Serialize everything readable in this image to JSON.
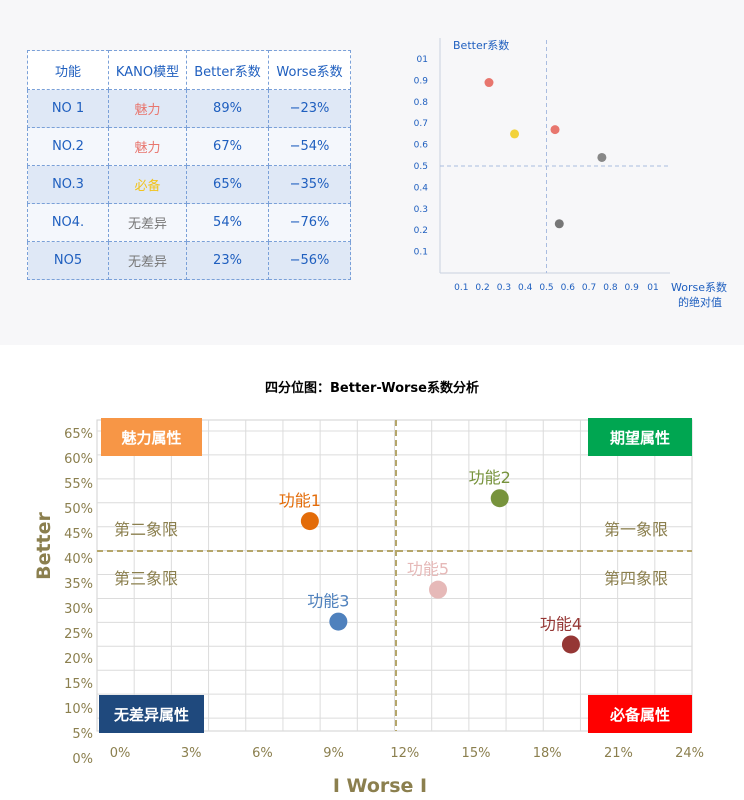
{
  "table": {
    "headers": [
      "功能",
      "KANO模型",
      "Better系数",
      "Worse系数"
    ],
    "rows": [
      {
        "name": "NO 1",
        "model": "魅力",
        "better": "89%",
        "worse": "−23%",
        "model_color": "#e8766e"
      },
      {
        "name": "NO.2",
        "model": "魅力",
        "better": "67%",
        "worse": "−54%",
        "model_color": "#e8766e"
      },
      {
        "name": "NO.3",
        "model": "必备",
        "better": "65%",
        "worse": "−35%",
        "model_color": "#f2c31c"
      },
      {
        "name": "NO4.",
        "model": "无差异",
        "better": "54%",
        "worse": "−76%",
        "model_color": "#777777"
      },
      {
        "name": "NO5",
        "model": "无差异",
        "better": "23%",
        "worse": "−56%",
        "model_color": "#777777"
      }
    ]
  },
  "chart_data": [
    {
      "type": "scatter",
      "ylabel": "Better系数",
      "xlabel": "Worse系数",
      "xlabel_line2": "的绝对值",
      "x_ticks": [
        "0.1",
        "0.2",
        "0.3",
        "0.4",
        "0.5",
        "0.6",
        "0.7",
        "0.8",
        "0.9",
        "01"
      ],
      "y_ticks": [
        "01",
        "0.9",
        "0.8",
        "0.7",
        "0.6",
        "0.5",
        "0.4",
        "0.3",
        "0.2",
        "0.1"
      ],
      "xlim": [
        0,
        1.0
      ],
      "ylim": [
        0,
        1.0
      ],
      "reference_lines": {
        "x": 0.5,
        "y": 0.5
      },
      "points": [
        {
          "x": 0.23,
          "y": 0.89,
          "color": "#e8766e"
        },
        {
          "x": 0.54,
          "y": 0.67,
          "color": "#e8766e"
        },
        {
          "x": 0.35,
          "y": 0.65,
          "color": "#f2d23a"
        },
        {
          "x": 0.76,
          "y": 0.54,
          "color": "#888888"
        },
        {
          "x": 0.56,
          "y": 0.23,
          "color": "#777777"
        }
      ]
    },
    {
      "type": "scatter",
      "title": "四分位图：Better-Worse系数分析",
      "ylabel": "Better",
      "xlabel": "I Worse I",
      "x_ticks": [
        "0%",
        "3%",
        "6%",
        "9%",
        "12%",
        "15%",
        "18%",
        "21%",
        "24%"
      ],
      "y_ticks": [
        "65%",
        "60%",
        "55%",
        "50%",
        "45%",
        "40%",
        "35%",
        "30%",
        "25%",
        "20%",
        "15%",
        "10%",
        "5%",
        "0%"
      ],
      "xlim": [
        0,
        24
      ],
      "ylim": [
        0,
        65
      ],
      "reference_lines": {
        "x": 12,
        "y": 36
      },
      "points": [
        {
          "label": "功能1",
          "x": 8,
          "y": 42,
          "color": "#e36c09"
        },
        {
          "label": "功能2",
          "x": 16,
          "y": 47,
          "color": "#77933c"
        },
        {
          "label": "功能3",
          "x": 9.2,
          "y": 20,
          "color": "#4f81bd"
        },
        {
          "label": "功能4",
          "x": 19,
          "y": 15,
          "color": "#953735"
        },
        {
          "label": "功能5",
          "x": 13.4,
          "y": 27,
          "color": "#e6b9b8"
        }
      ],
      "quadrant_texts": {
        "q1": "第一象限",
        "q2": "第二象限",
        "q3": "第三象限",
        "q4": "第四象限"
      },
      "corner_labels": [
        {
          "text": "魅力属性",
          "corner": "top-left",
          "color": "#f79646"
        },
        {
          "text": "期望属性",
          "corner": "top-right",
          "color": "#00a651"
        },
        {
          "text": "无差异属性",
          "corner": "bottom-left",
          "color": "#1f497d"
        },
        {
          "text": "必备属性",
          "corner": "bottom-right",
          "color": "#ff0000"
        }
      ],
      "axis_label_color": "#8b7f4e"
    }
  ]
}
